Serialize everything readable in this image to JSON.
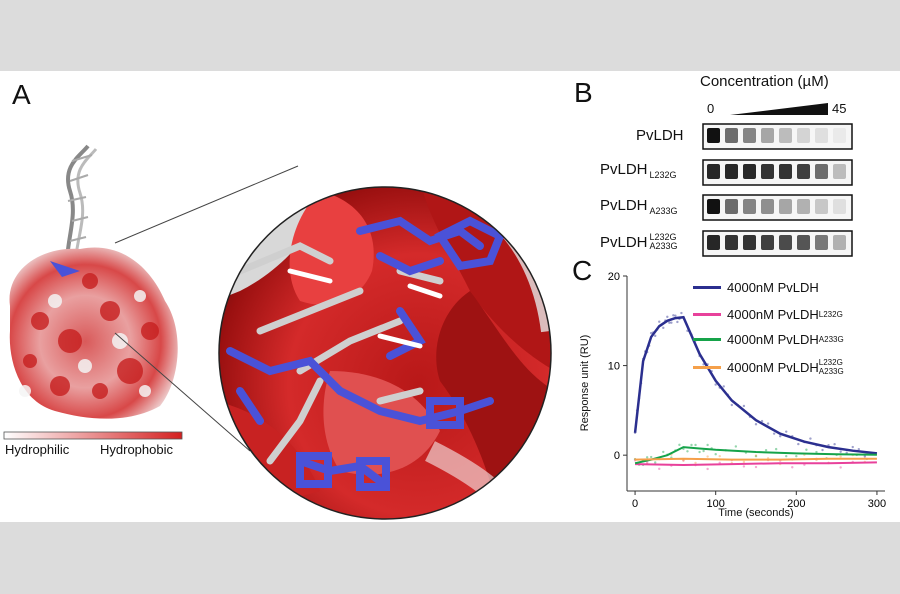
{
  "panels": {
    "a": {
      "letter": "A",
      "scale_left": "Hydrophilic",
      "scale_right": "Hydrophobic"
    },
    "b": {
      "letter": "B",
      "title": "Concentration (µM)",
      "conc_min": "0",
      "conc_max": "45",
      "rows": [
        {
          "name": "PvLDH",
          "sub1": "",
          "sub2": ""
        },
        {
          "name": "PvLDH",
          "sub1": "L232G",
          "sub2": ""
        },
        {
          "name": "PvLDH",
          "sub1": "A233G",
          "sub2": ""
        },
        {
          "name": "PvLDH",
          "sub1": "L232G",
          "sub2": "A233G"
        }
      ]
    },
    "c": {
      "letter": "C"
    }
  },
  "chart_data": {
    "type": "line",
    "xlabel": "Time (seconds)",
    "ylabel": "Response unit (RU)",
    "xlim": [
      -10,
      310
    ],
    "ylim": [
      -4,
      20
    ],
    "xticks": [
      0,
      100,
      200,
      300
    ],
    "yticks": [
      0,
      10,
      20
    ],
    "legend_position": "top-right",
    "series": [
      {
        "name": "4000nM PvLDH",
        "sub1": "",
        "sub2": "",
        "color": "#2b2f8f",
        "x": [
          0,
          10,
          20,
          30,
          40,
          50,
          60,
          80,
          100,
          120,
          150,
          180,
          210,
          240,
          270,
          300
        ],
        "y": [
          2.5,
          10.5,
          13.2,
          14.4,
          15.0,
          15.3,
          15.4,
          11.3,
          8.3,
          6.1,
          3.9,
          2.4,
          1.5,
          0.9,
          0.5,
          0.2
        ]
      },
      {
        "name": "4000nM PvLDH",
        "sub1": "L232G",
        "sub2": "",
        "color": "#e8419b",
        "x": [
          0,
          60,
          120,
          180,
          240,
          300
        ],
        "y": [
          -1.0,
          -1.1,
          -1.0,
          -0.9,
          -0.9,
          -0.8
        ]
      },
      {
        "name": "4000nM PvLDH",
        "sub1": "A233G",
        "sub2": "",
        "color": "#16a34a",
        "x": [
          0,
          20,
          40,
          60,
          80,
          100,
          150,
          200,
          250,
          300
        ],
        "y": [
          -0.9,
          -0.5,
          0.0,
          0.9,
          0.75,
          0.6,
          0.35,
          0.2,
          0.1,
          0.05
        ]
      },
      {
        "name": "4000nM PvLDH",
        "sub1": "L232G",
        "sub2": "A233G",
        "color": "#f5a04a",
        "x": [
          0,
          60,
          120,
          180,
          240,
          300
        ],
        "y": [
          -0.5,
          -0.4,
          -0.5,
          -0.5,
          -0.4,
          -0.4
        ]
      }
    ]
  },
  "colors": {
    "hydrophilic": "#ffffff",
    "hydrophobic": "#d42020",
    "ligand": "#4a52d8",
    "background": "#dcdcdc"
  }
}
